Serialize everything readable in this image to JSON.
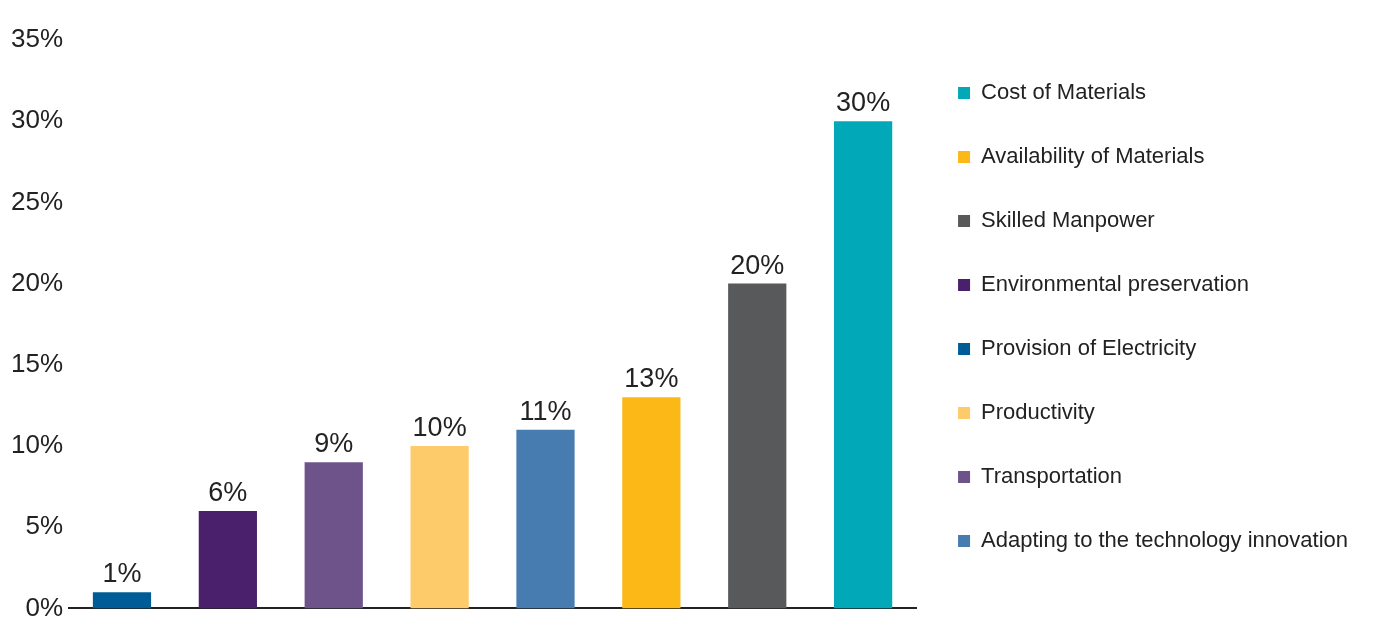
{
  "chart_data": {
    "type": "bar",
    "categories": [
      null,
      null,
      null,
      null,
      null,
      null,
      null,
      null
    ],
    "series": [
      {
        "name": "Cost of Materials",
        "color": "#00a8b8",
        "values": [
          null,
          null,
          null,
          null,
          null,
          null,
          null,
          30
        ],
        "value_labels": [
          null,
          null,
          null,
          null,
          null,
          null,
          null,
          "30%"
        ]
      },
      {
        "name": "Availability of Materials",
        "color": "#fbb817",
        "values": [
          null,
          null,
          null,
          null,
          null,
          13,
          null,
          null
        ],
        "value_labels": [
          null,
          null,
          null,
          null,
          null,
          "13%",
          null,
          null
        ]
      },
      {
        "name": "Skilled Manpower",
        "color": "#58595b",
        "values": [
          null,
          null,
          null,
          null,
          null,
          null,
          20,
          null
        ],
        "value_labels": [
          null,
          null,
          null,
          null,
          null,
          null,
          "20%",
          null
        ]
      },
      {
        "name": "Environmental preservation",
        "color": "#4a1f6b",
        "values": [
          null,
          6,
          null,
          null,
          null,
          null,
          null,
          null
        ],
        "value_labels": [
          null,
          "6%",
          null,
          null,
          null,
          null,
          null,
          null
        ]
      },
      {
        "name": "Provision of Electricity",
        "color": "#005c97",
        "values": [
          1,
          null,
          null,
          null,
          null,
          null,
          null,
          null
        ],
        "value_labels": [
          "1%",
          null,
          null,
          null,
          null,
          null,
          null,
          null
        ]
      },
      {
        "name": "Productivity",
        "color": "#fecb6a",
        "values": [
          null,
          null,
          null,
          10,
          null,
          null,
          null,
          null
        ],
        "value_labels": [
          null,
          null,
          null,
          "10%",
          null,
          null,
          null,
          null
        ]
      },
      {
        "name": "Transportation",
        "color": "#6e538b",
        "values": [
          null,
          null,
          9,
          null,
          null,
          null,
          null,
          null
        ],
        "value_labels": [
          null,
          null,
          "9%",
          null,
          null,
          null,
          null,
          null
        ]
      },
      {
        "name": "Adapting to the technology innovation",
        "color": "#467caf",
        "values": [
          null,
          null,
          null,
          null,
          11,
          null,
          null,
          null
        ],
        "value_labels": [
          null,
          null,
          null,
          null,
          "11%",
          null,
          null,
          null
        ]
      }
    ],
    "ylim": [
      0,
      35
    ],
    "yticks": [
      {
        "value": 0,
        "label": "0%"
      },
      {
        "value": 5,
        "label": "5%"
      },
      {
        "value": 10,
        "label": "10%"
      },
      {
        "value": 15,
        "label": "15%"
      },
      {
        "value": 20,
        "label": "20%"
      },
      {
        "value": 25,
        "label": "25%"
      },
      {
        "value": 30,
        "label": "30%"
      },
      {
        "value": 35,
        "label": "35%"
      }
    ],
    "grid": false,
    "legend": "right"
  }
}
